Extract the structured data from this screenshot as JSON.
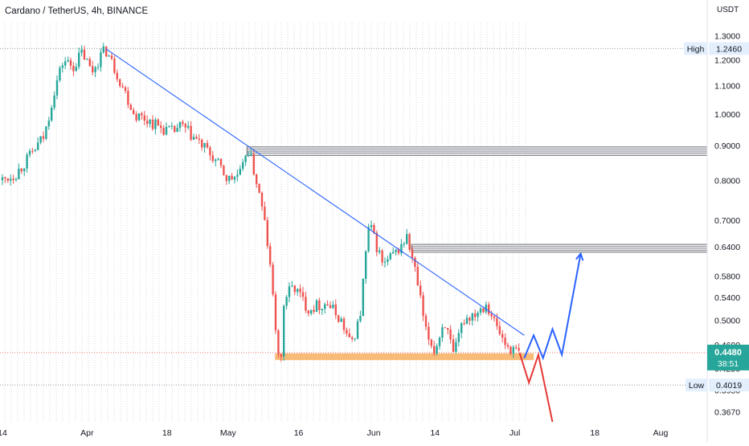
{
  "header": {
    "title": "Cardano / TetherUS, 4h, BINANCE"
  },
  "chart_data": {
    "type": "candlestick",
    "title": "Cardano / TetherUS, 4h, BINANCE",
    "symbol": "ADAUSDT",
    "currency": "USDT",
    "scale": "log",
    "ylim": [
      0.355,
      1.36
    ],
    "grid": true,
    "y_ticks": [
      "1.3000",
      "1.2000",
      "1.1000",
      "1.0000",
      "0.9000",
      "0.8000",
      "0.7000",
      "0.6400",
      "0.5800",
      "0.5400",
      "0.5000",
      "0.4600",
      "0.4480",
      "0.4250",
      "0.4019",
      "0.3950",
      "0.3670"
    ],
    "x_ticks": [
      "14",
      "Apr",
      "18",
      "May",
      "16",
      "Jun",
      "14",
      "Jul",
      "18",
      "Aug"
    ],
    "high": {
      "label": "High",
      "value": "1.2460"
    },
    "low": {
      "label": "Low",
      "value": "0.4019"
    },
    "last": {
      "price": "0.4480",
      "countdown": "38:51"
    },
    "price_path": [
      {
        "date": "Mar 14",
        "price": 0.8
      },
      {
        "date": "Mar 17",
        "price": 0.82
      },
      {
        "date": "Mar 20",
        "price": 0.87
      },
      {
        "date": "Mar 23",
        "price": 0.93
      },
      {
        "date": "Mar 25",
        "price": 1.08
      },
      {
        "date": "Mar 27",
        "price": 1.2
      },
      {
        "date": "Mar 29",
        "price": 1.17
      },
      {
        "date": "Mar 31",
        "price": 1.23
      },
      {
        "date": "Apr 2",
        "price": 1.15
      },
      {
        "date": "Apr 4",
        "price": 1.22
      },
      {
        "date": "Apr 5",
        "price": 1.24
      },
      {
        "date": "Apr 8",
        "price": 1.12
      },
      {
        "date": "Apr 11",
        "price": 1.0
      },
      {
        "date": "Apr 14",
        "price": 0.98
      },
      {
        "date": "Apr 16",
        "price": 0.96
      },
      {
        "date": "Apr 19",
        "price": 0.94
      },
      {
        "date": "Apr 21",
        "price": 0.96
      },
      {
        "date": "Apr 24",
        "price": 0.92
      },
      {
        "date": "Apr 28",
        "price": 0.86
      },
      {
        "date": "May 1",
        "price": 0.8
      },
      {
        "date": "May 4",
        "price": 0.82
      },
      {
        "date": "May 5",
        "price": 0.9
      },
      {
        "date": "May 7",
        "price": 0.8
      },
      {
        "date": "May 9",
        "price": 0.68
      },
      {
        "date": "May 11",
        "price": 0.5
      },
      {
        "date": "May 12",
        "price": 0.41
      },
      {
        "date": "May 13",
        "price": 0.54
      },
      {
        "date": "May 15",
        "price": 0.56
      },
      {
        "date": "May 18",
        "price": 0.52
      },
      {
        "date": "May 22",
        "price": 0.53
      },
      {
        "date": "May 25",
        "price": 0.5
      },
      {
        "date": "May 27",
        "price": 0.46
      },
      {
        "date": "May 29",
        "price": 0.5
      },
      {
        "date": "May 31",
        "price": 0.69
      },
      {
        "date": "Jun 3",
        "price": 0.6
      },
      {
        "date": "Jun 6",
        "price": 0.63
      },
      {
        "date": "Jun 8",
        "price": 0.66
      },
      {
        "date": "Jun 10",
        "price": 0.58
      },
      {
        "date": "Jun 12",
        "price": 0.48
      },
      {
        "date": "Jun 14",
        "price": 0.45
      },
      {
        "date": "Jun 16",
        "price": 0.5
      },
      {
        "date": "Jun 18",
        "price": 0.44
      },
      {
        "date": "Jun 20",
        "price": 0.5
      },
      {
        "date": "Jun 22",
        "price": 0.51
      },
      {
        "date": "Jun 25",
        "price": 0.53
      },
      {
        "date": "Jun 27",
        "price": 0.49
      },
      {
        "date": "Jun 29",
        "price": 0.46
      },
      {
        "date": "Jul 1",
        "price": 0.45
      },
      {
        "date": "Jul 2",
        "price": 0.448
      }
    ],
    "support_zone": {
      "from": 0.437,
      "to": 0.447,
      "color": "#f7a54b"
    },
    "resistance_zones": [
      {
        "from": 0.87,
        "to": 0.895
      },
      {
        "from": 0.628,
        "to": 0.645
      }
    ],
    "trendline": {
      "from": {
        "date": "Apr 5",
        "price": 1.245
      },
      "to": {
        "date": "Jul 3",
        "price": 0.475
      },
      "color": "#2962ff"
    },
    "projections": [
      {
        "name": "bullish",
        "color": "#2962ff",
        "points": [
          {
            "date": "Jul 3",
            "price": 0.44
          },
          {
            "date": "Jul 5",
            "price": 0.475
          },
          {
            "date": "Jul 7",
            "price": 0.44
          },
          {
            "date": "Jul 9",
            "price": 0.485
          },
          {
            "date": "Jul 11",
            "price": 0.445
          },
          {
            "date": "Jul 15",
            "price": 0.625
          }
        ]
      },
      {
        "name": "bearish",
        "color": "#e53935",
        "points": [
          {
            "date": "Jul 2",
            "price": 0.448
          },
          {
            "date": "Jul 4",
            "price": 0.405
          },
          {
            "date": "Jul 6",
            "price": 0.445
          },
          {
            "date": "Jul 9",
            "price": 0.355
          }
        ]
      }
    ],
    "colors": {
      "up": "#26a69a",
      "down": "#ef5350",
      "last_price": "#26a69a",
      "accent": "#2962ff"
    }
  }
}
